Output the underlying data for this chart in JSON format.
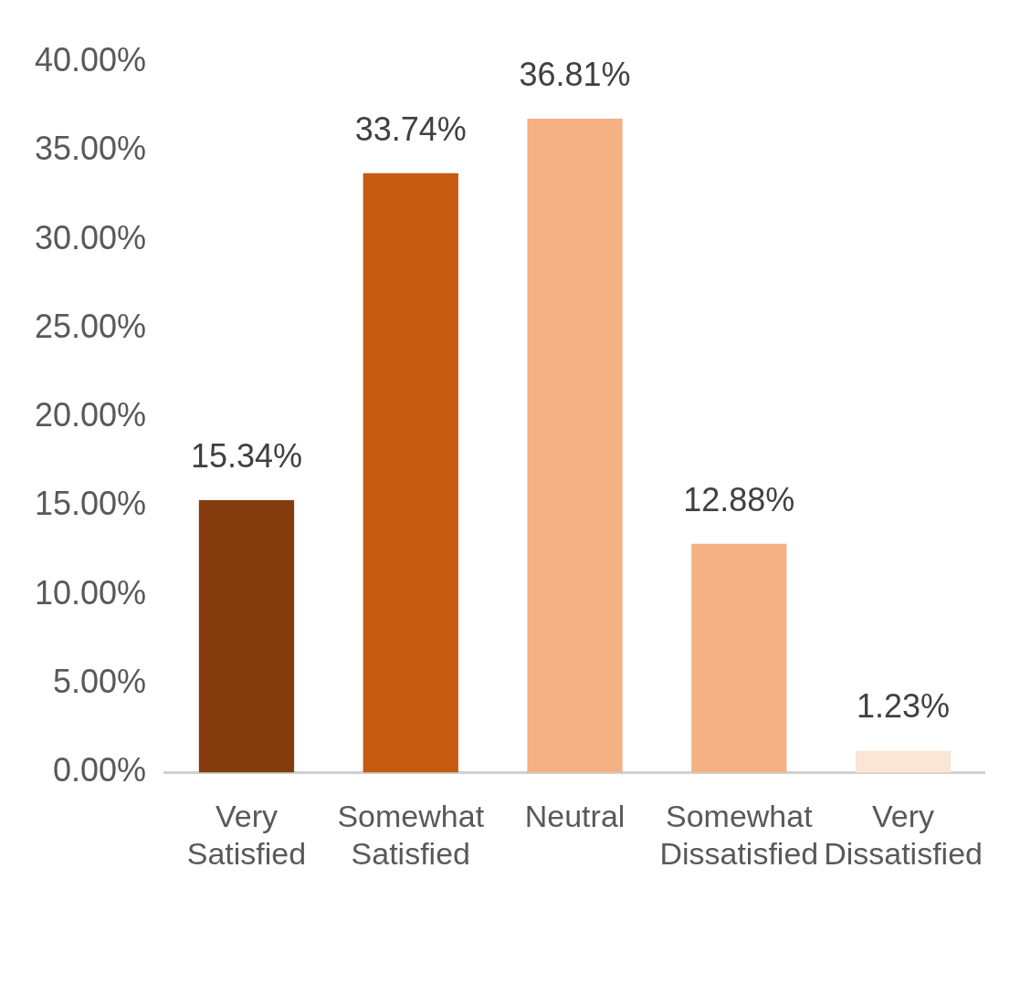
{
  "chart_data": {
    "type": "bar",
    "categories": [
      "Very Satisfied",
      "Somewhat Satisfied",
      "Neutral",
      "Somewhat Dissatisfied",
      "Very Dissatisfied"
    ],
    "values": [
      15.34,
      33.74,
      36.81,
      12.88,
      1.23
    ],
    "colors": [
      "#843c0c",
      "#c55a11",
      "#f4b183",
      "#f4b183",
      "#fbe5d6"
    ],
    "value_labels": [
      "15.34%",
      "33.74%",
      "36.81%",
      "12.88%",
      "1.23%"
    ],
    "ylim": [
      0,
      40
    ],
    "yticks": [
      {
        "value": 0,
        "label": "0.00%"
      },
      {
        "value": 5,
        "label": "5.00%"
      },
      {
        "value": 10,
        "label": "10.00%"
      },
      {
        "value": 15,
        "label": "15.00%"
      },
      {
        "value": 20,
        "label": "20.00%"
      },
      {
        "value": 25,
        "label": "25.00%"
      },
      {
        "value": 30,
        "label": "30.00%"
      },
      {
        "value": 35,
        "label": "35.00%"
      },
      {
        "value": 40,
        "label": "40.00%"
      }
    ],
    "grid": false,
    "legend": false
  }
}
